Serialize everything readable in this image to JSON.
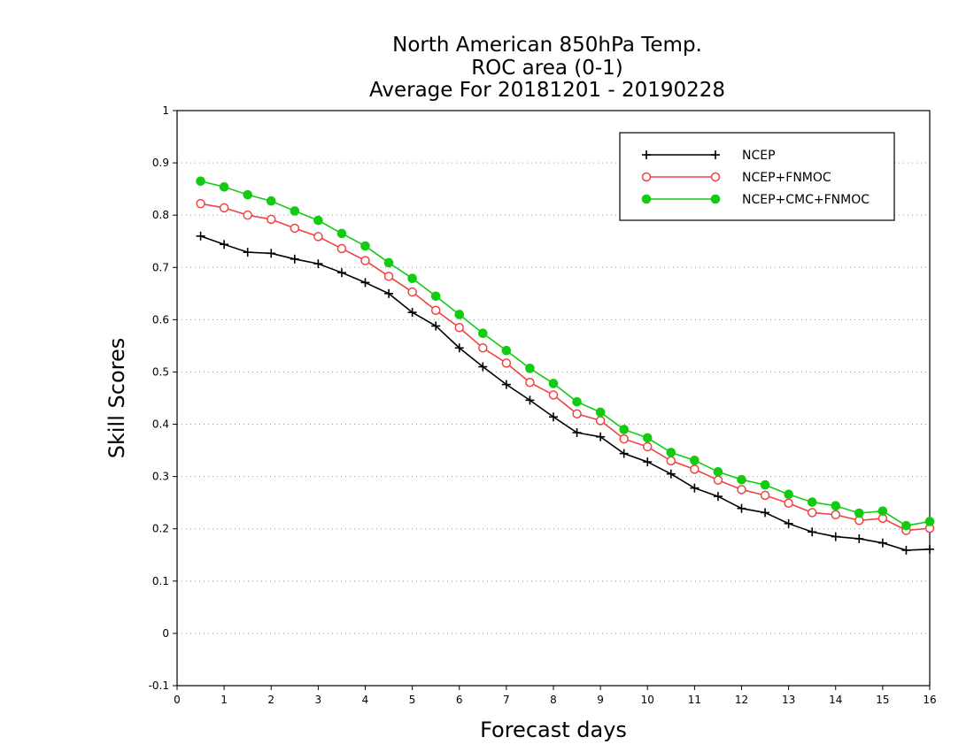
{
  "chart_data": {
    "type": "line",
    "title": [
      "North American 850hPa Temp.",
      "ROC area (0-1)",
      "Average For 20181201 - 20190228"
    ],
    "xlabel": "Forecast days",
    "ylabel": "Skill Scores",
    "xlim": [
      0,
      16
    ],
    "ylim": [
      -0.1,
      1
    ],
    "xticks": [
      "0",
      "1",
      "2",
      "3",
      "4",
      "5",
      "6",
      "7",
      "8",
      "9",
      "10",
      "11",
      "12",
      "13",
      "14",
      "15",
      "16"
    ],
    "yticks": [
      "-0.1",
      "0",
      "0.1",
      "0.2",
      "0.3",
      "0.4",
      "0.5",
      "0.6",
      "0.7",
      "0.8",
      "0.9",
      "1"
    ],
    "grid": true,
    "legend_position": "top-right",
    "x": [
      0.5,
      1,
      1.5,
      2,
      2.5,
      3,
      3.5,
      4,
      4.5,
      5,
      5.5,
      6,
      6.5,
      7,
      7.5,
      8,
      8.5,
      9,
      9.5,
      10,
      10.5,
      11,
      11.5,
      12,
      12.5,
      13,
      13.5,
      14,
      14.5,
      15,
      15.5,
      16
    ],
    "series": [
      {
        "name": "NCEP",
        "color": "#000000",
        "marker": "plus",
        "values": [
          0.76,
          0.744,
          0.729,
          0.727,
          0.716,
          0.707,
          0.69,
          0.671,
          0.65,
          0.614,
          0.588,
          0.546,
          0.51,
          0.476,
          0.446,
          0.414,
          0.384,
          0.376,
          0.344,
          0.328,
          0.305,
          0.278,
          0.262,
          0.239,
          0.231,
          0.21,
          0.194,
          0.185,
          0.181,
          0.173,
          0.159,
          0.161
        ]
      },
      {
        "name": "NCEP+FNMOC",
        "color": "#ee4444",
        "marker": "open-circle",
        "values": [
          0.822,
          0.814,
          0.8,
          0.792,
          0.775,
          0.759,
          0.736,
          0.713,
          0.683,
          0.653,
          0.618,
          0.585,
          0.546,
          0.517,
          0.48,
          0.456,
          0.42,
          0.407,
          0.372,
          0.357,
          0.33,
          0.314,
          0.293,
          0.275,
          0.264,
          0.249,
          0.231,
          0.227,
          0.216,
          0.22,
          0.197,
          0.201
        ]
      },
      {
        "name": "NCEP+CMC+FNMOC",
        "color": "#11cc11",
        "marker": "filled-circle",
        "values": [
          0.865,
          0.854,
          0.839,
          0.827,
          0.808,
          0.79,
          0.765,
          0.741,
          0.709,
          0.679,
          0.645,
          0.61,
          0.574,
          0.541,
          0.507,
          0.478,
          0.443,
          0.423,
          0.39,
          0.374,
          0.346,
          0.331,
          0.309,
          0.294,
          0.284,
          0.266,
          0.251,
          0.244,
          0.23,
          0.234,
          0.206,
          0.214
        ]
      }
    ]
  }
}
